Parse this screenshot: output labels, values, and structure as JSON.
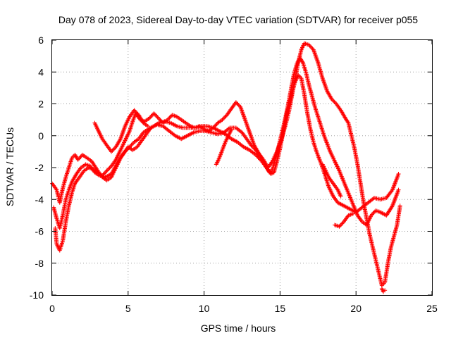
{
  "chart_data": {
    "type": "scatter",
    "title": "Day 078 of 2023, Sidereal Day-to-day VTEC variation (SDTVAR) for receiver p055",
    "xlabel": "GPS time / hours",
    "ylabel": "SDTVAR / TECUs",
    "xlim": [
      0,
      25
    ],
    "ylim": [
      -10,
      6
    ],
    "xticks": [
      0,
      5,
      10,
      15,
      20,
      25
    ],
    "yticks": [
      -10,
      -8,
      -6,
      -4,
      -2,
      0,
      2,
      4,
      6
    ],
    "grid": true,
    "legend": "none",
    "marker": "+",
    "color": "#ff0000",
    "series": [
      {
        "values": [
          [
            0.0,
            -3.0
          ],
          [
            0.3,
            -3.4
          ],
          [
            0.5,
            -4.2
          ],
          [
            0.7,
            -3.3
          ],
          [
            0.9,
            -2.6
          ],
          [
            1.1,
            -2.0
          ],
          [
            1.3,
            -1.4
          ],
          [
            1.5,
            -1.2
          ],
          [
            1.7,
            -1.5
          ],
          [
            2.0,
            -1.2
          ],
          [
            2.3,
            -1.4
          ],
          [
            2.6,
            -1.6
          ],
          [
            2.8,
            -1.9
          ],
          [
            3.0,
            -2.2
          ],
          [
            3.3,
            -2.6
          ],
          [
            3.6,
            -2.8
          ],
          [
            3.9,
            -2.6
          ],
          [
            4.2,
            -2.0
          ],
          [
            4.5,
            -1.4
          ],
          [
            4.8,
            -1.0
          ],
          [
            5.1,
            -0.7
          ],
          [
            5.4,
            -0.4
          ],
          [
            5.7,
            -0.2
          ],
          [
            6.0,
            0.2
          ],
          [
            6.3,
            0.4
          ],
          [
            6.7,
            0.6
          ],
          [
            7.0,
            0.8
          ],
          [
            7.4,
            0.9
          ],
          [
            7.8,
            0.8
          ],
          [
            8.2,
            0.6
          ],
          [
            8.6,
            0.5
          ],
          [
            9.0,
            0.5
          ],
          [
            9.4,
            0.5
          ],
          [
            9.8,
            0.6
          ],
          [
            10.2,
            0.6
          ],
          [
            10.6,
            0.5
          ],
          [
            11.0,
            0.3
          ],
          [
            11.4,
            0.1
          ],
          [
            11.8,
            -0.2
          ],
          [
            12.2,
            -0.4
          ],
          [
            12.6,
            -0.7
          ],
          [
            13.0,
            -0.9
          ],
          [
            13.4,
            -1.2
          ],
          [
            13.8,
            -1.6
          ],
          [
            14.1,
            -2.0
          ],
          [
            14.4,
            -2.4
          ],
          [
            14.6,
            -2.3
          ],
          [
            14.8,
            -1.6
          ],
          [
            15.0,
            -0.8
          ],
          [
            15.2,
            0.2
          ],
          [
            15.4,
            1.2
          ],
          [
            15.6,
            2.0
          ],
          [
            15.8,
            2.8
          ],
          [
            16.0,
            3.4
          ],
          [
            16.2,
            3.8
          ],
          [
            16.4,
            3.6
          ],
          [
            16.6,
            2.6
          ],
          [
            16.8,
            1.4
          ],
          [
            17.0,
            0.4
          ],
          [
            17.2,
            -0.4
          ],
          [
            17.4,
            -1.0
          ],
          [
            17.6,
            -1.5
          ],
          [
            17.8,
            -2.0
          ],
          [
            18.0,
            -2.6
          ],
          [
            18.2,
            -3.2
          ],
          [
            18.5,
            -3.8
          ],
          [
            18.8,
            -4.2
          ],
          [
            19.2,
            -4.4
          ],
          [
            19.6,
            -4.6
          ],
          [
            20.0,
            -4.8
          ],
          [
            20.4,
            -4.5
          ],
          [
            20.8,
            -4.2
          ],
          [
            21.2,
            -3.9
          ],
          [
            21.6,
            -4.0
          ],
          [
            22.0,
            -3.9
          ],
          [
            22.4,
            -3.4
          ],
          [
            22.8,
            -2.4
          ]
        ]
      },
      {
        "values": [
          [
            0.1,
            -4.5
          ],
          [
            0.3,
            -5.2
          ],
          [
            0.5,
            -5.8
          ],
          [
            0.7,
            -5.0
          ],
          [
            0.9,
            -4.0
          ],
          [
            1.1,
            -3.4
          ],
          [
            1.3,
            -2.9
          ],
          [
            1.6,
            -2.4
          ],
          [
            1.9,
            -2.0
          ],
          [
            2.2,
            -1.8
          ],
          [
            2.5,
            -1.9
          ],
          [
            2.8,
            -2.3
          ],
          [
            3.1,
            -2.5
          ],
          [
            3.5,
            -2.6
          ],
          [
            3.9,
            -2.4
          ],
          [
            4.3,
            -1.7
          ],
          [
            4.7,
            -1.1
          ],
          [
            5.0,
            -0.7
          ],
          [
            5.3,
            -0.9
          ],
          [
            5.6,
            -0.7
          ],
          [
            5.9,
            -0.3
          ],
          [
            6.2,
            0.1
          ],
          [
            6.5,
            0.5
          ],
          [
            6.9,
            0.7
          ],
          [
            7.3,
            0.6
          ],
          [
            7.7,
            0.3
          ],
          [
            8.1,
            0.0
          ],
          [
            8.5,
            -0.2
          ],
          [
            8.9,
            0.0
          ],
          [
            9.3,
            0.2
          ],
          [
            9.7,
            0.3
          ],
          [
            10.1,
            0.3
          ],
          [
            10.5,
            0.2
          ],
          [
            10.9,
            0.1
          ],
          [
            11.3,
            0.2
          ],
          [
            11.7,
            0.5
          ],
          [
            12.1,
            0.5
          ],
          [
            12.5,
            0.2
          ],
          [
            12.8,
            -0.2
          ],
          [
            13.1,
            -0.6
          ],
          [
            13.4,
            -0.9
          ],
          [
            13.7,
            -1.3
          ],
          [
            14.0,
            -1.8
          ],
          [
            14.3,
            -2.3
          ],
          [
            14.5,
            -2.1
          ],
          [
            14.7,
            -1.4
          ],
          [
            14.9,
            -0.7
          ],
          [
            15.1,
            0.1
          ],
          [
            15.3,
            0.9
          ],
          [
            15.5,
            1.8
          ],
          [
            15.7,
            2.8
          ],
          [
            15.9,
            3.8
          ],
          [
            16.1,
            4.5
          ],
          [
            16.3,
            4.9
          ],
          [
            16.5,
            4.6
          ],
          [
            16.7,
            4.0
          ],
          [
            16.9,
            3.2
          ],
          [
            17.1,
            2.5
          ],
          [
            17.3,
            1.8
          ],
          [
            17.5,
            1.2
          ],
          [
            17.7,
            0.6
          ],
          [
            17.9,
            0.0
          ],
          [
            18.1,
            -0.5
          ],
          [
            18.3,
            -1.0
          ],
          [
            18.6,
            -1.6
          ],
          [
            18.9,
            -2.2
          ],
          [
            19.2,
            -2.9
          ],
          [
            19.5,
            -3.6
          ],
          [
            19.8,
            -4.3
          ],
          [
            20.1,
            -5.0
          ],
          [
            20.4,
            -5.4
          ],
          [
            20.7,
            -5.6
          ],
          [
            21.0,
            -5.0
          ],
          [
            21.3,
            -4.7
          ],
          [
            21.6,
            -4.8
          ],
          [
            22.0,
            -5.0
          ],
          [
            22.4,
            -4.4
          ],
          [
            22.8,
            -3.4
          ]
        ]
      },
      {
        "values": [
          [
            0.2,
            -5.8
          ],
          [
            0.3,
            -6.8
          ],
          [
            0.5,
            -7.2
          ],
          [
            0.7,
            -6.6
          ],
          [
            0.9,
            -5.4
          ],
          [
            1.1,
            -4.4
          ],
          [
            1.3,
            -3.6
          ],
          [
            1.5,
            -3.0
          ],
          [
            1.8,
            -2.6
          ],
          [
            2.1,
            -2.2
          ],
          [
            2.4,
            -2.0
          ],
          [
            2.7,
            -2.1
          ],
          [
            3.0,
            -2.3
          ],
          [
            3.3,
            -2.5
          ],
          [
            3.6,
            -2.2
          ],
          [
            3.9,
            -1.9
          ],
          [
            4.2,
            -1.5
          ],
          [
            4.5,
            -0.9
          ],
          [
            4.8,
            -0.3
          ],
          [
            5.1,
            0.3
          ],
          [
            5.3,
            0.9
          ],
          [
            5.5,
            1.4
          ],
          [
            5.8,
            1.0
          ],
          [
            6.1,
            0.9
          ],
          [
            6.4,
            1.1
          ],
          [
            6.7,
            1.4
          ],
          [
            7.0,
            1.1
          ],
          [
            7.3,
            0.8
          ],
          [
            7.6,
            1.0
          ],
          [
            7.9,
            1.3
          ],
          [
            8.2,
            1.2
          ],
          [
            8.5,
            1.0
          ],
          [
            8.8,
            0.8
          ],
          [
            9.1,
            0.6
          ],
          [
            9.4,
            0.5
          ],
          [
            9.7,
            0.6
          ],
          [
            10.0,
            0.4
          ],
          [
            10.3,
            0.3
          ],
          [
            10.6,
            0.5
          ],
          [
            10.9,
            0.8
          ],
          [
            11.2,
            1.0
          ],
          [
            11.5,
            1.3
          ],
          [
            11.8,
            1.7
          ],
          [
            12.1,
            2.1
          ],
          [
            12.4,
            1.8
          ],
          [
            12.7,
            1.0
          ],
          [
            13.0,
            0.2
          ],
          [
            13.3,
            -0.6
          ],
          [
            13.6,
            -1.1
          ],
          [
            13.9,
            -1.5
          ],
          [
            14.2,
            -2.0
          ],
          [
            14.5,
            -1.6
          ],
          [
            14.8,
            -1.0
          ],
          [
            15.1,
            -0.2
          ],
          [
            15.4,
            0.8
          ],
          [
            15.6,
            1.6
          ],
          [
            15.8,
            2.6
          ],
          [
            16.0,
            3.6
          ],
          [
            16.2,
            4.6
          ],
          [
            16.4,
            5.4
          ],
          [
            16.6,
            5.8
          ],
          [
            16.9,
            5.7
          ],
          [
            17.2,
            5.4
          ],
          [
            17.5,
            4.6
          ],
          [
            17.8,
            3.6
          ],
          [
            18.1,
            2.8
          ],
          [
            18.4,
            2.3
          ],
          [
            18.7,
            2.0
          ],
          [
            19.0,
            1.6
          ],
          [
            19.3,
            1.1
          ],
          [
            19.5,
            0.8
          ],
          [
            19.7,
            0.0
          ],
          [
            19.9,
            -0.8
          ],
          [
            20.1,
            -1.8
          ],
          [
            20.3,
            -3.0
          ],
          [
            20.5,
            -4.2
          ],
          [
            20.7,
            -5.2
          ],
          [
            20.9,
            -6.2
          ],
          [
            21.1,
            -7.0
          ],
          [
            21.3,
            -7.8
          ],
          [
            21.5,
            -8.6
          ],
          [
            21.7,
            -9.4
          ],
          [
            21.9,
            -9.2
          ],
          [
            22.1,
            -8.0
          ],
          [
            22.3,
            -7.0
          ],
          [
            22.5,
            -6.3
          ],
          [
            22.7,
            -5.6
          ],
          [
            22.9,
            -4.4
          ]
        ]
      },
      {
        "values": [
          [
            2.8,
            0.8
          ],
          [
            3.0,
            0.4
          ],
          [
            3.3,
            -0.2
          ],
          [
            3.6,
            -0.6
          ],
          [
            3.9,
            -1.0
          ],
          [
            4.2,
            -0.7
          ],
          [
            4.5,
            -0.2
          ],
          [
            4.8,
            0.6
          ],
          [
            5.1,
            1.2
          ],
          [
            5.4,
            1.6
          ],
          [
            5.7,
            1.3
          ],
          [
            6.0,
            0.8
          ],
          [
            6.3,
            0.6
          ]
        ]
      },
      {
        "values": [
          [
            10.8,
            -1.8
          ],
          [
            11.0,
            -1.4
          ],
          [
            11.2,
            -0.9
          ],
          [
            11.4,
            -0.4
          ],
          [
            11.6,
            0.0
          ],
          [
            11.8,
            0.4
          ]
        ]
      },
      {
        "values": [
          [
            17.8,
            -1.8
          ],
          [
            18.0,
            -2.2
          ],
          [
            18.2,
            -2.6
          ],
          [
            18.5,
            -3.0
          ],
          [
            18.8,
            -3.4
          ],
          [
            19.0,
            -3.8
          ]
        ]
      },
      {
        "values": [
          [
            18.6,
            -5.6
          ],
          [
            18.9,
            -5.7
          ],
          [
            19.2,
            -5.4
          ],
          [
            19.5,
            -5.0
          ],
          [
            19.8,
            -4.9
          ]
        ]
      },
      {
        "values": [
          [
            21.7,
            -9.6
          ],
          [
            21.8,
            -9.8
          ],
          [
            21.9,
            -9.7
          ]
        ]
      }
    ]
  }
}
